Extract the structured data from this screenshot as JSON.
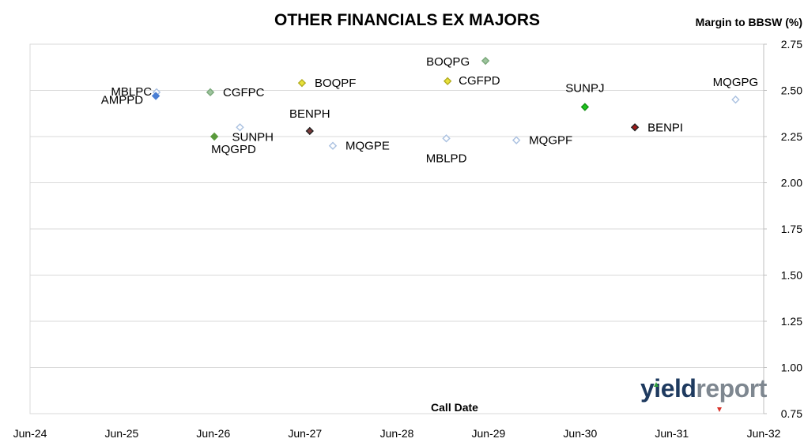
{
  "chart_data": {
    "type": "scatter",
    "title": "OTHER FINANCIALS EX MAJORS",
    "xlabel": "Call Date",
    "ylabel": "Margin to BBSW (%)",
    "x_type": "date",
    "xlim": [
      "2024-06",
      "2032-06"
    ],
    "ylim": [
      0.75,
      2.75
    ],
    "x_ticks": [
      "Jun-24",
      "Jun-25",
      "Jun-26",
      "Jun-27",
      "Jun-28",
      "Jun-29",
      "Jun-30",
      "Jun-31",
      "Jun-32"
    ],
    "y_ticks": [
      "0.75",
      "1.00",
      "1.25",
      "1.50",
      "1.75",
      "2.00",
      "2.25",
      "2.50",
      "2.75"
    ],
    "grid": "horizontal",
    "y_axis_side": "right",
    "points": [
      {
        "label": "MBLPC",
        "x": "2025-10-18",
        "y": 2.49,
        "color": "#ffffff",
        "stroke": "#a9c0e0"
      },
      {
        "label": "AMPPD",
        "x": "2025-10-15",
        "y": 2.47,
        "color": "#4a7fd4",
        "stroke": "#4a7fd4"
      },
      {
        "label": "CGFPC",
        "x": "2026-05-20",
        "y": 2.49,
        "color": "#9dc49d",
        "stroke": "#7aa87a"
      },
      {
        "label": "SUNPH",
        "x": "2026-09-15",
        "y": 2.3,
        "color": "#ffffff",
        "stroke": "#a9c0e0"
      },
      {
        "label": "MQGPD",
        "x": "2026-06-05",
        "y": 2.25,
        "color": "#5a9a3c",
        "stroke": "#5a9a3c"
      },
      {
        "label": "BOQPF",
        "x": "2027-05-20",
        "y": 2.54,
        "color": "#e8e13a",
        "stroke": "#b3ad20"
      },
      {
        "label": "BENPH",
        "x": "2027-06-20",
        "y": 2.28,
        "color": "#7a3a3a",
        "stroke": "#222222"
      },
      {
        "label": "MQGPE",
        "x": "2027-09-20",
        "y": 2.2,
        "color": "#ffffff",
        "stroke": "#a9c0e0"
      },
      {
        "label": "BOQPG",
        "x": "2029-05-20",
        "y": 2.66,
        "color": "#9dc49d",
        "stroke": "#7aa87a"
      },
      {
        "label": "CGFPD",
        "x": "2028-12-20",
        "y": 2.55,
        "color": "#e8e13a",
        "stroke": "#b3ad20"
      },
      {
        "label": "MBLPD",
        "x": "2028-12-15",
        "y": 2.24,
        "color": "#ffffff",
        "stroke": "#a9c0e0"
      },
      {
        "label": "MQGPF",
        "x": "2029-09-20",
        "y": 2.23,
        "color": "#ffffff",
        "stroke": "#a9c0e0"
      },
      {
        "label": "SUNPJ",
        "x": "2030-06-20",
        "y": 2.41,
        "color": "#1ec41e",
        "stroke": "#129012"
      },
      {
        "label": "BENPI",
        "x": "2031-01-05",
        "y": 2.3,
        "color": "#a01a1a",
        "stroke": "#222222"
      },
      {
        "label": "MQGPG",
        "x": "2032-02-10",
        "y": 2.45,
        "color": "#ffffff",
        "stroke": "#a9c0e0"
      }
    ]
  },
  "logo": {
    "part1": "yield",
    "part2": "report"
  }
}
